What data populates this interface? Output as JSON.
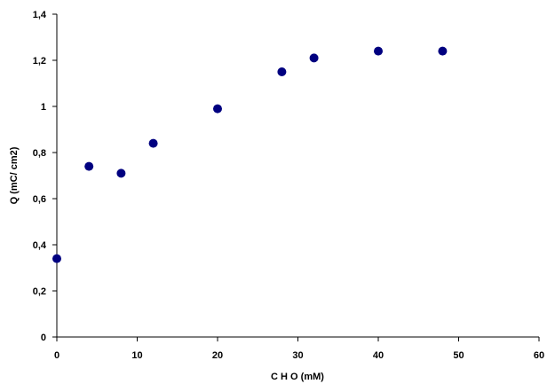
{
  "chart_data": {
    "type": "scatter",
    "title": "",
    "xlabel": "C H O (mM)",
    "ylabel": "Q (mC/ cm2)",
    "xlim": [
      0,
      60
    ],
    "ylim": [
      0,
      1.4
    ],
    "x_ticks": [
      0,
      10,
      20,
      30,
      40,
      50,
      60
    ],
    "y_ticks": [
      0,
      0.2,
      0.4,
      0.6,
      0.8,
      1.0,
      1.2,
      1.4
    ],
    "x_tick_labels": [
      "0",
      "10",
      "20",
      "30",
      "40",
      "50",
      "60"
    ],
    "y_tick_labels": [
      "0",
      "0,2",
      "0,4",
      "0,6",
      "0,8",
      "1",
      "1,2",
      "1,4"
    ],
    "grid": false,
    "marker_color": "#000080",
    "series": [
      {
        "x": [
          0,
          4,
          8,
          12,
          20,
          28,
          32,
          40,
          48
        ],
        "y": [
          0.34,
          0.74,
          0.71,
          0.84,
          0.99,
          1.15,
          1.21,
          1.24,
          1.24
        ]
      }
    ]
  }
}
